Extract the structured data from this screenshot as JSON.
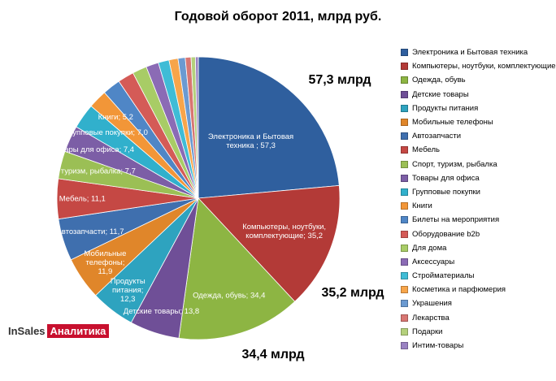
{
  "chart_data": {
    "type": "pie",
    "title": "Годовой оборот 2011, млрд  руб.",
    "categories": [
      "Электроника и Бытовая техника",
      "Компьютеры, ноутбуки, комплектующие",
      "Одежда, обувь",
      "Детские товары",
      "Продукты питания",
      "Мобильные телефоны",
      "Автозапчасти",
      "Мебель",
      "Спорт, туризм, рыбалка",
      "Товары для офиса",
      "Групповые покупки",
      "Книги",
      "Билеты на мероприятия",
      "Оборудование b2b",
      "Для дома",
      "Аксессуары",
      "Стройматериалы",
      "Косметика и парфюмерия",
      "Украшения",
      "Лекарства",
      "Подарки",
      "Интим-товары"
    ],
    "values": [
      57.3,
      35.2,
      34.4,
      13.8,
      12.3,
      11.9,
      11.7,
      11.1,
      7.7,
      7.4,
      7.0,
      5.2,
      5.0,
      4.5,
      4.0,
      3.5,
      3.0,
      2.5,
      2.0,
      1.6,
      1.2,
      0.8
    ],
    "colors": [
      "#2f5f9e",
      "#b33a37",
      "#8db543",
      "#6f4f97",
      "#2ea3bf",
      "#e0862a",
      "#3f6fae",
      "#c54844",
      "#9bbf55",
      "#7c5ea6",
      "#31b0cc",
      "#f29638",
      "#4f86c6",
      "#d45b57",
      "#a8cc66",
      "#8b6bb5",
      "#3fbcd6",
      "#f7a54a",
      "#6b9ad1",
      "#d87672",
      "#b4d07c",
      "#9a82c2"
    ],
    "slice_labels": [
      [
        "Электроника  и Бытовая",
        "техника  ; 57,3"
      ],
      [
        "Компьютеры,  ноутбуки,",
        "комплектующие;  35,2"
      ],
      [
        "Одежда, обувь;  34,4"
      ],
      [
        "Детские товары;  13,8"
      ],
      [
        "Продукты",
        "питания;",
        "12,3"
      ],
      [
        "Мобильные",
        "телефоны;",
        "11,9"
      ],
      [
        "Автозапчасти;  11,7"
      ],
      [
        "Мебель;  11,1"
      ],
      [
        "Спорт, туризм, рыбалка;  7,7"
      ],
      [
        "Товары  для офиса;  7,4"
      ],
      [
        "Групповые  покупки;  7,0"
      ],
      [
        "Книги;  5,2"
      ]
    ],
    "callouts": [
      "57,3 млрд",
      "35,2 млрд",
      "34,4 млрд"
    ],
    "legend_position": "right"
  },
  "brand": {
    "in": "InSales",
    "analytics": "Аналитика"
  }
}
